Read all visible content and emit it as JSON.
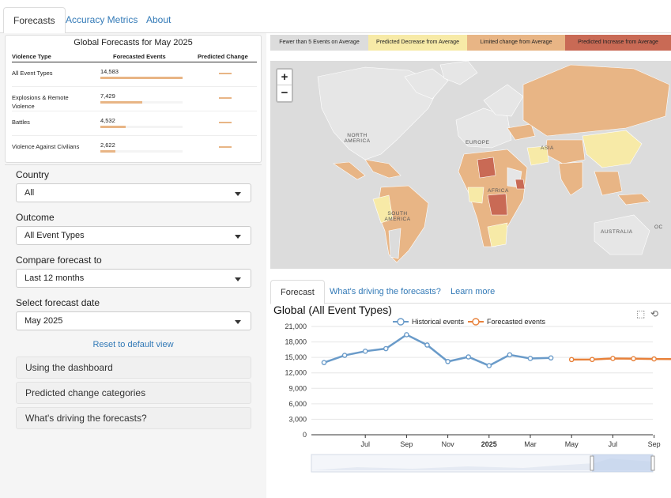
{
  "nav": {
    "tabs": [
      "Forecasts",
      "Accuracy Metrics",
      "About"
    ],
    "active": 0
  },
  "summary": {
    "title": "Global Forecasts for May 2025",
    "headers": [
      "Violence Type",
      "Forecasted Events",
      "Predicted Change"
    ],
    "rows": [
      {
        "type": "All Event Types",
        "value": "14,583",
        "share": 1.0
      },
      {
        "type": "Explosions & Remote Violence",
        "value": "7,429",
        "share": 0.51
      },
      {
        "type": "Battles",
        "value": "4,532",
        "share": 0.31
      },
      {
        "type": "Violence Against Civilians",
        "value": "2,622",
        "share": 0.18
      }
    ]
  },
  "filters": {
    "country": {
      "label": "Country",
      "value": "All"
    },
    "outcome": {
      "label": "Outcome",
      "value": "All Event Types"
    },
    "compare": {
      "label": "Compare forecast to",
      "value": "Last 12 months"
    },
    "date": {
      "label": "Select forecast date",
      "value": "May 2025"
    },
    "reset": "Reset to default view",
    "accordions": [
      "Using the dashboard",
      "Predicted change categories",
      "What's driving the forecasts?"
    ]
  },
  "legend": [
    {
      "label": "Fewer than 5 Events on Average",
      "color": "#dcdcdc"
    },
    {
      "label": "Predicted Decrease from Average",
      "color": "#f7eaa7"
    },
    {
      "label": "Limited change from Average",
      "color": "#e8b585"
    },
    {
      "label": "Predicted Increase from Average",
      "color": "#c96a55"
    }
  ],
  "map": {
    "zoom_in": "+",
    "zoom_out": "−",
    "labels": [
      "NORTH AMERICA",
      "EUROPE",
      "ASIA",
      "AFRICA",
      "SOUTH AMERICA",
      "AUSTRALIA",
      "OC"
    ]
  },
  "subtabs": [
    "Forecast",
    "What's driving the forecasts?",
    "Learn more"
  ],
  "chart_data": {
    "type": "line",
    "title": "Global (All Event Types)",
    "y_ticks": [
      "0",
      "3,000",
      "6,000",
      "9,000",
      "12,000",
      "15,000",
      "18,000",
      "21,000"
    ],
    "ylim": [
      0,
      21000
    ],
    "x_ticks": [
      "Jul",
      "Sep",
      "Nov",
      "2025",
      "Mar",
      "May",
      "Jul",
      "Sep"
    ],
    "series": [
      {
        "name": "Historical events",
        "color": "#6a9bc9",
        "x": [
          "2024-05",
          "2024-06",
          "2024-07",
          "2024-08",
          "2024-09",
          "2024-10",
          "2024-11",
          "2024-12",
          "2025-01",
          "2025-02",
          "2025-03",
          "2025-04"
        ],
        "values": [
          14000,
          15400,
          16200,
          16700,
          19400,
          17400,
          14200,
          15100,
          13400,
          15500,
          14800,
          14900
        ]
      },
      {
        "name": "Forecasted events",
        "color": "#e8813a",
        "x": [
          "2025-05",
          "2025-06",
          "2025-07",
          "2025-08",
          "2025-09",
          "2025-10"
        ],
        "values": [
          14583,
          14600,
          14800,
          14750,
          14700,
          14680
        ]
      }
    ]
  }
}
